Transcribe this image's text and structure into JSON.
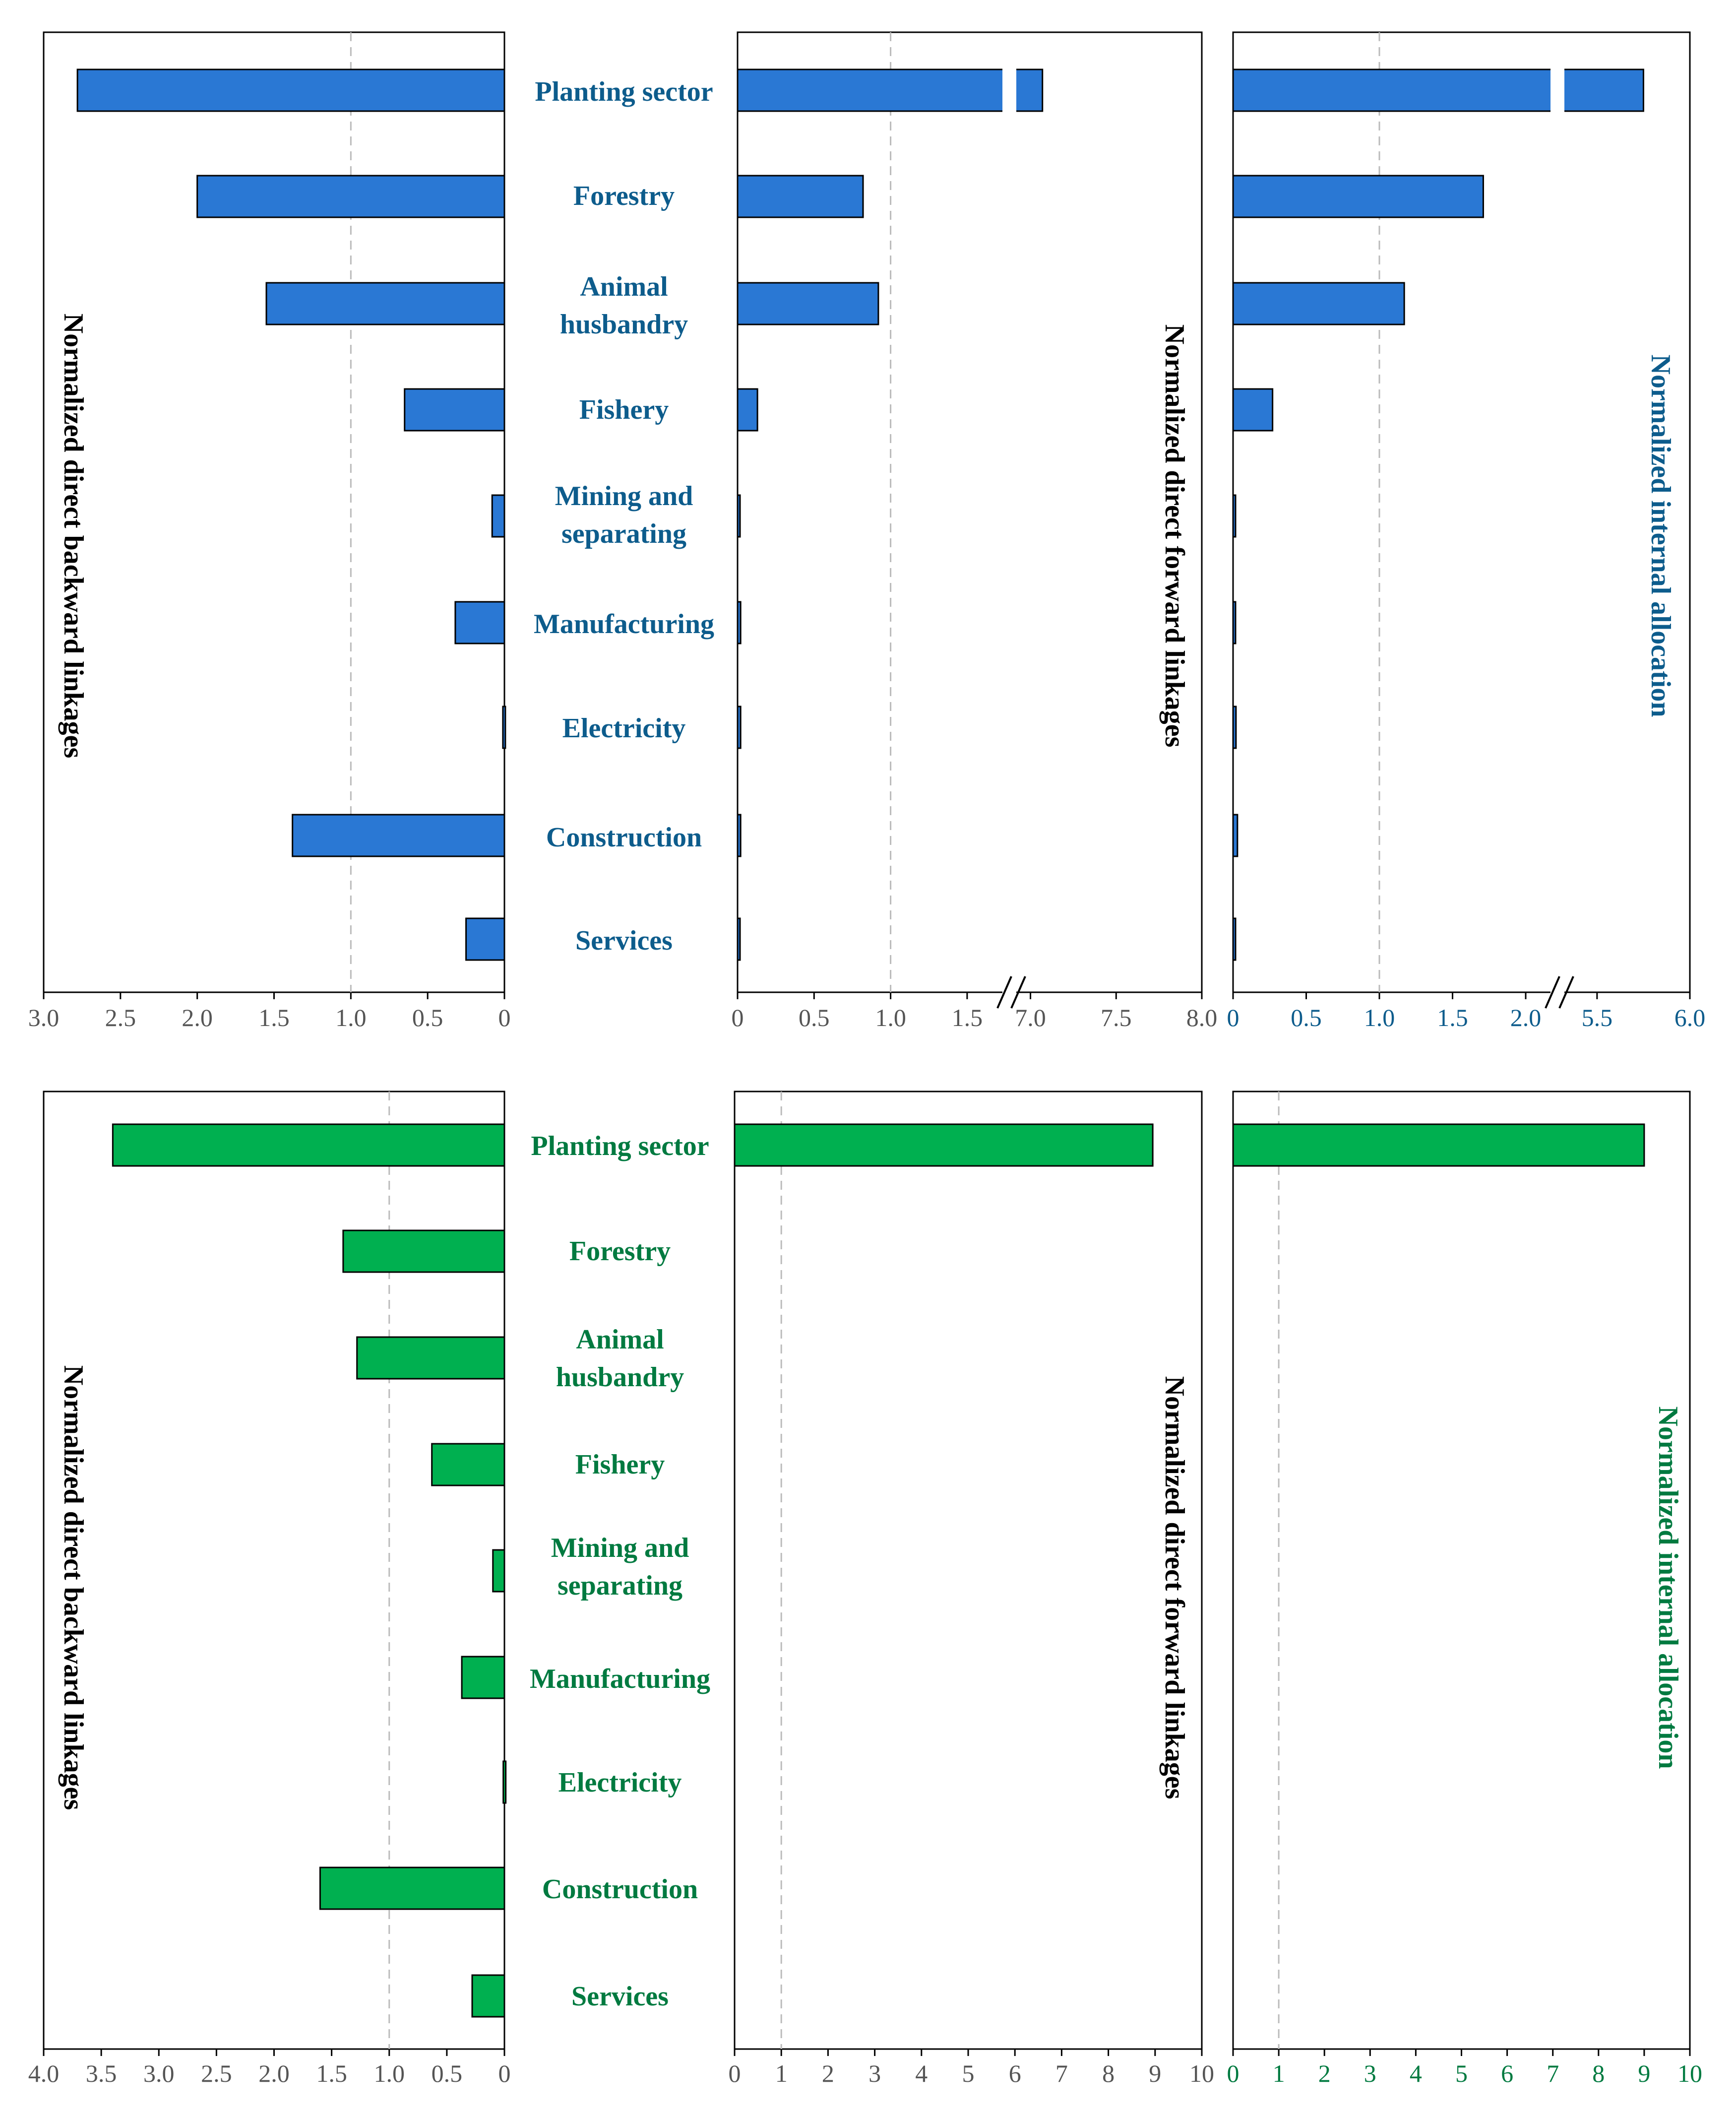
{
  "colors": {
    "blue_bar": "#2A78D4",
    "blue_text": "#0D5C8C",
    "green_bar": "#00B050",
    "green_text": "#007A40",
    "frame": "#000000",
    "tick_text": "#555555",
    "ref_line": "#BBBBBB"
  },
  "categories": [
    [
      "Planting sector"
    ],
    [
      "Forestry"
    ],
    [
      "Animal",
      "husbandry"
    ],
    [
      "Fishery"
    ],
    [
      "Mining and",
      "separating"
    ],
    [
      "Manufacturing"
    ],
    [
      "Electricity"
    ],
    [
      "Construction"
    ],
    [
      "Services"
    ]
  ],
  "chart_data": [
    {
      "type": "bar",
      "id": "top-backward",
      "title": "",
      "ylabel": "Normalized direct backward linkages",
      "categories": [
        "Planting sector",
        "Forestry",
        "Animal husbandry",
        "Fishery",
        "Mining and separating",
        "Manufacturing",
        "Electricity",
        "Construction",
        "Services"
      ],
      "values": [
        2.78,
        2.0,
        1.55,
        0.65,
        0.08,
        0.32,
        0.01,
        1.38,
        0.25
      ],
      "xlim": [
        3.0,
        0
      ],
      "reference_line": 1.0,
      "ticks": [
        "3.0",
        "2.5",
        "2.0",
        "1.5",
        "1.0",
        "0.5",
        "0"
      ]
    },
    {
      "type": "bar",
      "id": "top-forward",
      "title": "",
      "ylabel": "Normalized direct forward linkages",
      "categories": [
        "Planting sector",
        "Forestry",
        "Animal husbandry",
        "Fishery",
        "Mining and separating",
        "Manufacturing",
        "Electricity",
        "Construction",
        "Services"
      ],
      "values": [
        7.07,
        0.82,
        0.92,
        0.13,
        0.01,
        0.02,
        0.02,
        0.02,
        0.01
      ],
      "axis_break": {
        "from": 1.75,
        "to": 6.9
      },
      "reference_line": 1.0,
      "ticks": [
        "0",
        "0.5",
        "1.0",
        "1.5",
        "7.0",
        "7.5",
        "8.0"
      ]
    },
    {
      "type": "bar",
      "id": "top-internal",
      "title": "",
      "ylabel": "Normalized internal allocation",
      "categories": [
        "Planting sector",
        "Forestry",
        "Animal husbandry",
        "Fishery",
        "Mining and separating",
        "Manufacturing",
        "Electricity",
        "Construction",
        "Services"
      ],
      "values": [
        5.75,
        1.71,
        1.17,
        0.27,
        0.01,
        0.01,
        0.02,
        0.03,
        0.01
      ],
      "axis_break": {
        "from": 2.2,
        "to": 5.3
      },
      "reference_line": 1.0,
      "ticks": [
        "0",
        "0.5",
        "1.0",
        "1.5",
        "2.0",
        "5.5",
        "6.0"
      ]
    },
    {
      "type": "bar",
      "id": "bottom-backward",
      "title": "",
      "ylabel": "Normalized direct backward linkages",
      "categories": [
        "Planting sector",
        "Forestry",
        "Animal husbandry",
        "Fishery",
        "Mining and separating",
        "Manufacturing",
        "Electricity",
        "Construction",
        "Services"
      ],
      "values": [
        3.4,
        1.4,
        1.28,
        0.63,
        0.1,
        0.37,
        0.01,
        1.6,
        0.28
      ],
      "xlim": [
        4.0,
        0
      ],
      "reference_line": 1.0,
      "ticks": [
        "4.0",
        "3.5",
        "3.0",
        "2.5",
        "2.0",
        "1.5",
        "1.0",
        "0.5",
        "0"
      ]
    },
    {
      "type": "bar",
      "id": "bottom-forward",
      "title": "",
      "ylabel": "Normalized direct forward linkages",
      "categories": [
        "Planting sector",
        "Forestry",
        "Animal husbandry",
        "Fishery",
        "Mining and separating",
        "Manufacturing",
        "Electricity",
        "Construction",
        "Services"
      ],
      "values": [
        8.95,
        0,
        0,
        0,
        0,
        0,
        0,
        0,
        0
      ],
      "xlim": [
        0,
        10
      ],
      "reference_line": 1.0,
      "ticks": [
        "0",
        "1",
        "2",
        "3",
        "4",
        "5",
        "6",
        "7",
        "8",
        "9",
        "10"
      ]
    },
    {
      "type": "bar",
      "id": "bottom-internal",
      "title": "",
      "ylabel": "Normalized internal allocation",
      "categories": [
        "Planting sector",
        "Forestry",
        "Animal husbandry",
        "Fishery",
        "Mining and separating",
        "Manufacturing",
        "Electricity",
        "Construction",
        "Services"
      ],
      "values": [
        9.0,
        0,
        0,
        0,
        0,
        0,
        0,
        0,
        0
      ],
      "xlim": [
        0,
        10
      ],
      "reference_line": 1.0,
      "ticks": [
        "0",
        "1",
        "2",
        "3",
        "4",
        "5",
        "6",
        "7",
        "8",
        "9",
        "10"
      ]
    }
  ]
}
